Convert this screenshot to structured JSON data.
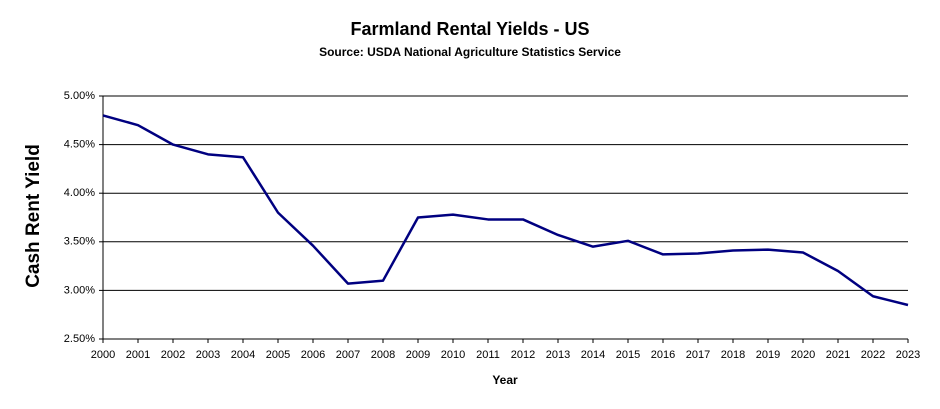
{
  "chart_data": {
    "type": "line",
    "title": "Farmland Rental Yields - US",
    "subtitle": "Source: USDA National Agriculture Statistics Service",
    "x_label": "Year",
    "y_label": "Cash Rent Yield",
    "x": [
      2000,
      2001,
      2002,
      2003,
      2004,
      2005,
      2006,
      2007,
      2008,
      2009,
      2010,
      2011,
      2012,
      2013,
      2014,
      2015,
      2016,
      2017,
      2018,
      2019,
      2020,
      2021,
      2022,
      2023
    ],
    "values": [
      4.8,
      4.7,
      4.5,
      4.4,
      4.37,
      3.8,
      3.46,
      3.07,
      3.1,
      3.75,
      3.78,
      3.73,
      3.73,
      3.57,
      3.45,
      3.51,
      3.37,
      3.38,
      3.41,
      3.42,
      3.39,
      3.2,
      2.94,
      2.85
    ],
    "color": "#000080",
    "xlim": [
      2000,
      2023
    ],
    "xticks": [
      2000,
      2001,
      2002,
      2003,
      2004,
      2005,
      2006,
      2007,
      2008,
      2009,
      2010,
      2011,
      2012,
      2013,
      2014,
      2015,
      2016,
      2017,
      2018,
      2019,
      2020,
      2021,
      2022,
      2023
    ],
    "ylim": [
      2.5,
      5.0
    ],
    "yticks": [
      {
        "value": 2.5,
        "label": "2.50%"
      },
      {
        "value": 3.0,
        "label": "3.00%"
      },
      {
        "value": 3.5,
        "label": "3.50%"
      },
      {
        "value": 4.0,
        "label": "4.00%"
      },
      {
        "value": 4.5,
        "label": "4.50%"
      },
      {
        "value": 5.0,
        "label": "5.00%"
      }
    ],
    "grid": true
  }
}
